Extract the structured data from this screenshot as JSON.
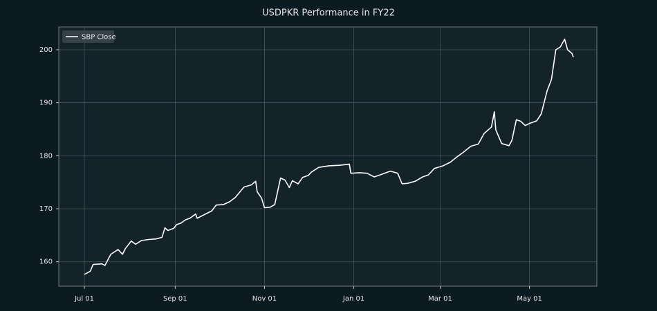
{
  "chart_data": {
    "type": "line",
    "title": "USDPKR Performance in FY22",
    "x": [
      0,
      4,
      6,
      12,
      14,
      18,
      23,
      26,
      28,
      32,
      35,
      39,
      44,
      49,
      53,
      55,
      57,
      61,
      63,
      66,
      69,
      72,
      76,
      77,
      82,
      87,
      90,
      95,
      99,
      103,
      109,
      114,
      117,
      118,
      121,
      123,
      127,
      130,
      134,
      137,
      140,
      142,
      146,
      149,
      153,
      155,
      160,
      167,
      174,
      181,
      182,
      188,
      193,
      198,
      203,
      209,
      214,
      217,
      221,
      226,
      231,
      235,
      239,
      245,
      250,
      254,
      259,
      264,
      269,
      273,
      278,
      280,
      281,
      285,
      290,
      292,
      295,
      298,
      301,
      304,
      309,
      312,
      316,
      319,
      322,
      325,
      328,
      330,
      333,
      334
    ],
    "series": [
      {
        "name": "SBP Close",
        "color": "#ffffff",
        "values": [
          157.6,
          158.2,
          159.5,
          159.6,
          159.3,
          161.4,
          162.3,
          161.4,
          162.5,
          163.9,
          163.3,
          164.0,
          164.2,
          164.3,
          164.6,
          166.4,
          165.9,
          166.3,
          167.0,
          167.3,
          167.9,
          168.2,
          169.0,
          168.2,
          168.9,
          169.6,
          170.7,
          170.8,
          171.3,
          172.1,
          174.1,
          174.5,
          175.2,
          173.2,
          172.0,
          170.2,
          170.3,
          170.8,
          175.8,
          175.4,
          174.0,
          175.3,
          174.7,
          175.9,
          176.3,
          176.9,
          177.8,
          178.1,
          178.2,
          178.4,
          176.7,
          176.8,
          176.7,
          176.0,
          176.5,
          177.1,
          176.7,
          174.7,
          174.8,
          175.2,
          176.0,
          176.4,
          177.6,
          178.1,
          178.8,
          179.7,
          180.7,
          181.8,
          182.2,
          184.2,
          185.4,
          188.3,
          184.9,
          182.3,
          181.9,
          182.9,
          186.8,
          186.5,
          185.7,
          186.1,
          186.6,
          187.9,
          192.2,
          194.4,
          200.0,
          200.5,
          202.0,
          200.0,
          199.3,
          198.6
        ]
      }
    ],
    "xlim": [
      -17.5,
      350
    ],
    "xticks": [
      {
        "value": 0,
        "label": "Jul 01"
      },
      {
        "value": 62,
        "label": "Sep 01"
      },
      {
        "value": 123,
        "label": "Nov 01"
      },
      {
        "value": 184,
        "label": "Jan 01"
      },
      {
        "value": 243,
        "label": "Mar 01"
      },
      {
        "value": 304,
        "label": "May 01"
      }
    ],
    "ylim": [
      155.4,
      204.3
    ],
    "yticks": [
      160,
      170,
      180,
      190,
      200
    ],
    "grid": true,
    "legend": "upper left"
  }
}
